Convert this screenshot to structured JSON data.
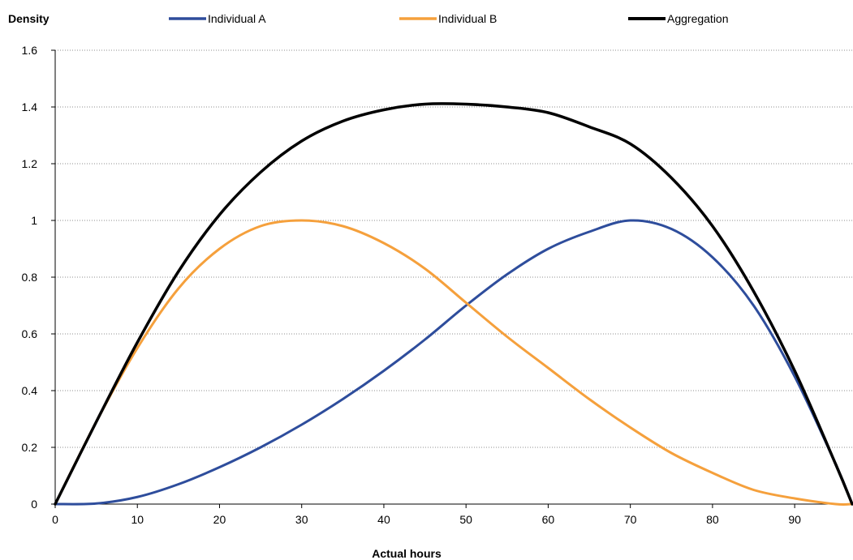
{
  "chart_data": {
    "type": "line",
    "title": "",
    "ylabel": "Density",
    "xlabel": "Actual hours",
    "xlim": [
      0,
      97
    ],
    "ylim": [
      0,
      1.6
    ],
    "x_ticks": [
      "0",
      "10",
      "20",
      "30",
      "40",
      "50",
      "60",
      "70",
      "80",
      "90"
    ],
    "y_ticks": [
      "0",
      "0.2",
      "0.4",
      "0.6",
      "0.8",
      "1",
      "1.2",
      "1.4",
      "1.6"
    ],
    "grid": "horizontal-dotted",
    "legend_position": "top",
    "x": [
      0,
      5,
      10,
      15,
      20,
      25,
      30,
      35,
      40,
      45,
      50,
      55,
      60,
      65,
      70,
      75,
      80,
      85,
      90,
      95,
      97
    ],
    "series": [
      {
        "name": "Individual A",
        "color": "#2e4d9c",
        "values": [
          0,
          0.002,
          0.025,
          0.07,
          0.13,
          0.2,
          0.28,
          0.37,
          0.47,
          0.58,
          0.7,
          0.81,
          0.9,
          0.96,
          1.0,
          0.97,
          0.87,
          0.7,
          0.45,
          0.14,
          0
        ]
      },
      {
        "name": "Individual B",
        "color": "#f5a03c",
        "values": [
          0,
          0.29,
          0.55,
          0.76,
          0.9,
          0.98,
          1.0,
          0.98,
          0.92,
          0.83,
          0.71,
          0.59,
          0.48,
          0.37,
          0.27,
          0.18,
          0.11,
          0.05,
          0.02,
          0,
          0
        ]
      },
      {
        "name": "Aggregation",
        "color": "#000000",
        "values": [
          0,
          0.29,
          0.57,
          0.82,
          1.02,
          1.17,
          1.28,
          1.35,
          1.39,
          1.41,
          1.41,
          1.4,
          1.38,
          1.33,
          1.27,
          1.15,
          0.98,
          0.75,
          0.47,
          0.14,
          0
        ]
      }
    ]
  }
}
